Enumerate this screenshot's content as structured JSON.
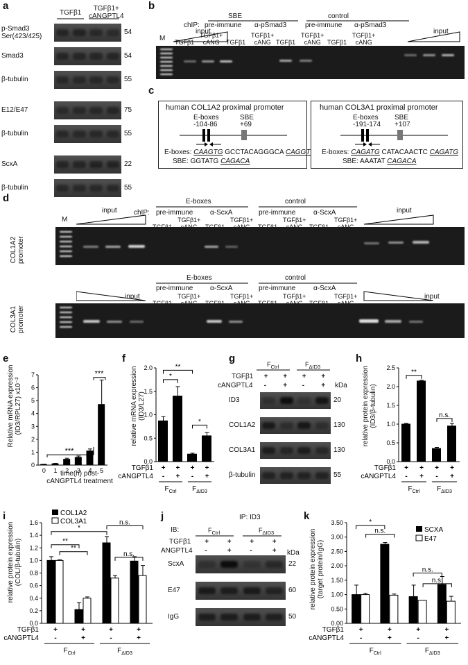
{
  "panels": {
    "a": "a",
    "b": "b",
    "c": "c",
    "d": "d",
    "e": "e",
    "f": "f",
    "g": "g",
    "h": "h",
    "i": "i",
    "j": "j",
    "k": "k"
  },
  "a": {
    "col1": "TGFβ1",
    "col2a": "TGFβ1+",
    "col2b": "cANGPTL4",
    "blots": [
      {
        "name": "p-Smad3",
        "name2": "Ser(423/425)",
        "kda": "54"
      },
      {
        "name": "Smad3",
        "kda": "54"
      },
      {
        "name": "β-tubulin",
        "kda": "55"
      },
      {
        "name": "E12/E47",
        "kda": "75"
      },
      {
        "name": "β-tubulin",
        "kda": "55"
      },
      {
        "name": "ScxA",
        "kda": "22"
      },
      {
        "name": "β-tubulin",
        "kda": "55"
      }
    ]
  },
  "b": {
    "m": "M",
    "chip": "chIP:",
    "sbe": "SBE",
    "control": "control",
    "input": "input",
    "pre_immune": "pre-immune",
    "a_psmad3": "α-pSmad3",
    "lane_tgf": "TGFβ1",
    "lane_tgfc1": "TGFβ1+",
    "lane_tgfc2": "cANG"
  },
  "c": {
    "left_title": "human COL1A2 proximal promoter",
    "left_eboxes": "E-boxes",
    "left_epos": "-104-86",
    "left_sbe": "SBE",
    "left_spos": "+69",
    "left_seq1a": "E-boxes:",
    "left_seq1b": "CAAGTG",
    "left_seq1c": "GCCTACAGGGCA",
    "left_seq1d": "CAGGTG",
    "left_seq2a": "SBE: GGTATG",
    "left_seq2b": "CAGACA",
    "right_title": "human COL3A1 proximal promoter",
    "right_eboxes": "E-boxes",
    "right_epos": "-191-174",
    "right_sbe": "SBE",
    "right_spos": "+107",
    "right_seq1a": "E-boxes:",
    "right_seq1b": "CAGATG",
    "right_seq1c": "CATACAACTC",
    "right_seq1d": "CAGATG",
    "right_seq2a": "SBE: AAATAT",
    "right_seq2b": "CAGACA"
  },
  "d": {
    "m": "M",
    "chip": "chIP:",
    "eboxes": "E-boxes",
    "control": "control",
    "pre_immune": "pre-immune",
    "a_scxa": "α-ScxA",
    "input": "input",
    "lane_tgf": "TGFβ1",
    "lane_tgfc1": "TGFβ1+",
    "lane_tgfc2": "cANG",
    "row1": "COL1A2",
    "row1b": "promoter",
    "row2": "COL3A1",
    "row2b": "promoter"
  },
  "e": {
    "ylabel1": "Relative mRNA expression",
    "ylabel2": "(ID3/RPL27) x10⁻²",
    "xlabel1": "time(h) post-",
    "xlabel2": "cANGPTL4 treatment",
    "sig1": "***",
    "sig2": "***"
  },
  "f": {
    "ylabel1": "relative mRNA expression",
    "ylabel2": "(ID3/L27)",
    "tgf": "TGFβ1",
    "cang": "cANGPTL4",
    "plus": "+",
    "minus": "-",
    "fctrl": "F",
    "fctrl_sub": "Ctrl",
    "fdid3": "F",
    "fdid3_sub": "ΔID3",
    "sig1": "*",
    "sig2": "**",
    "sig3": "*"
  },
  "g": {
    "fctrl": "F",
    "fctrl_sub": "Ctrl",
    "fdid3": "F",
    "fdid3_sub": "ΔID3",
    "tgf": "TGFβ1",
    "cang": "cANGPTL4",
    "kda": "kDa",
    "blots": [
      {
        "name": "ID3",
        "kda": "20"
      },
      {
        "name": "COL1A2",
        "kda": "130"
      },
      {
        "name": "COL3A1",
        "kda": "130"
      },
      {
        "name": "β-tubulin",
        "kda": "55"
      }
    ]
  },
  "h": {
    "ylabel1": "relative protein expression",
    "ylabel2": "(ID3/β-tubulin)",
    "tgf": "TGFβ1",
    "cang": "cANGPTL4",
    "sig1": "**",
    "sig2": "n.s.",
    "fctrl": "F",
    "fctrl_sub": "Ctrl",
    "fdid3": "F",
    "fdid3_sub": "ΔID3"
  },
  "i": {
    "ylabel1": "relative protein expression",
    "ylabel2": "(COL/β-tubulin)",
    "legend1": "COL1A2",
    "legend2": "COL3A1",
    "tgf": "TGFβ1",
    "cang": "cANGPTL4",
    "sig1": "*",
    "sig2": "**",
    "sig3": "**",
    "sig4": "n.s.",
    "sig5": "n.s.",
    "fctrl": "F",
    "fctrl_sub": "Ctrl",
    "fdid3": "F",
    "fdid3_sub": "ΔID3"
  },
  "j": {
    "ip": "IP: ID3",
    "ib": "IB:",
    "fctrl": "F",
    "fctrl_sub": "Ctrl",
    "fdid3": "F",
    "fdid3_sub": "ΔID3",
    "tgf": "TGFβ1",
    "ang": "ANGPTL4",
    "kda": "kDa",
    "blots": [
      {
        "name": "ScxA",
        "kda": "22"
      },
      {
        "name": "E47",
        "kda": "60"
      },
      {
        "name": "IgG",
        "kda": "50"
      }
    ]
  },
  "k": {
    "ylabel1": "relative protein expression",
    "ylabel2": "(target protein/IgG)",
    "legend1": "SCXA",
    "legend2": "E47",
    "tgf": "TGFβ1",
    "cang": "cANGPTL4",
    "sig1": "*",
    "sig2": "n.s.",
    "sig3": "n.s.",
    "sig4": "n.s.",
    "fctrl": "F",
    "fctrl_sub": "Ctrl",
    "fdid3": "F",
    "fdid3_sub": "ΔID3"
  },
  "chart_data": [
    {
      "panel": "e",
      "type": "bar",
      "categories": [
        "0",
        "1",
        "2",
        "3",
        "4",
        "5"
      ],
      "values": [
        0.05,
        0.1,
        0.45,
        0.6,
        1.1,
        4.7
      ],
      "errors": [
        0.02,
        0.03,
        0.08,
        0.1,
        0.15,
        1.9
      ],
      "yticks": [
        0,
        1,
        2,
        3,
        4,
        5,
        6,
        7
      ],
      "ylim": [
        0,
        7
      ]
    },
    {
      "panel": "f",
      "type": "bar",
      "categories": [
        "FCtrl -",
        "FCtrl +",
        "FΔID3 -",
        "FΔID3 +"
      ],
      "values": [
        0.87,
        1.4,
        0.16,
        0.55
      ],
      "errors": [
        0.09,
        0.2,
        0.02,
        0.07
      ],
      "yticks": [
        0,
        0.5,
        1.0,
        1.5,
        2.0
      ],
      "ylim": [
        0,
        2.0
      ]
    },
    {
      "panel": "h",
      "type": "bar",
      "categories": [
        "FCtrl -",
        "FCtrl +",
        "FΔID3 -",
        "FΔID3 +"
      ],
      "values": [
        1.0,
        2.15,
        0.35,
        0.95
      ],
      "errors": [
        0.02,
        0.02,
        0.03,
        0.07
      ],
      "yticks": [
        0,
        0.5,
        1.0,
        1.5,
        2.0,
        2.5
      ],
      "ylim": [
        0,
        2.5
      ]
    },
    {
      "panel": "i",
      "type": "bar",
      "categories": [
        "FCtrl -",
        "FCtrl +",
        "FΔID3 -",
        "FΔID3 +"
      ],
      "series": [
        {
          "name": "COL1A2",
          "values": [
            1.0,
            0.22,
            1.28,
            0.99
          ],
          "errors": [
            0.06,
            0.11,
            0.1,
            0.07
          ]
        },
        {
          "name": "COL3A1",
          "values": [
            1.0,
            0.4,
            0.72,
            0.76
          ],
          "errors": [
            0.01,
            0.02,
            0.04,
            0.16
          ]
        }
      ],
      "yticks": [
        0,
        0.2,
        0.4,
        0.6,
        0.8,
        1.0,
        1.2,
        1.4,
        1.6
      ],
      "ylim": [
        0,
        1.6
      ]
    },
    {
      "panel": "k",
      "type": "bar",
      "categories": [
        "FCtrl -",
        "FCtrl +",
        "FΔID3 -",
        "FΔID3 +"
      ],
      "series": [
        {
          "name": "SCXA",
          "values": [
            1.0,
            2.75,
            0.93,
            1.35
          ],
          "errors": [
            0.33,
            0.06,
            0.4,
            0.28
          ]
        },
        {
          "name": "E47",
          "values": [
            1.0,
            0.98,
            0.8,
            0.77
          ],
          "errors": [
            0.05,
            0.04,
            0.0,
            0.17
          ]
        }
      ],
      "yticks": [
        0,
        0.5,
        1.0,
        1.5,
        2.0,
        2.5,
        3.0,
        3.5
      ],
      "ylim": [
        0,
        3.5
      ]
    }
  ]
}
